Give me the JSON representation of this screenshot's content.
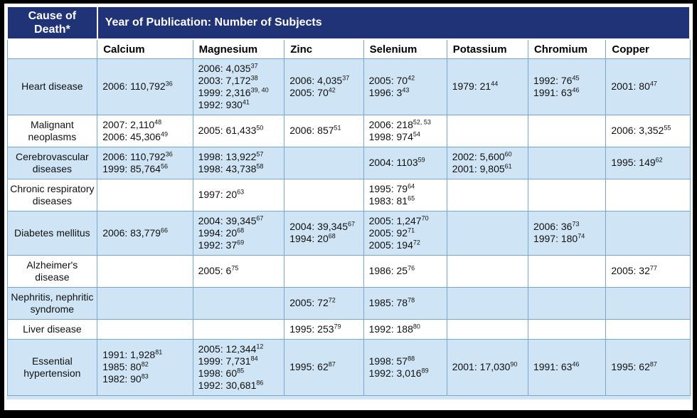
{
  "colors": {
    "header_navy": "#203376",
    "row_shaded": "#cfe4f4",
    "grid_blue": "#7aa6c9",
    "frame_black": "#000000"
  },
  "table": {
    "corner_header": "Cause of Death*",
    "span_header": "Year of Publication: Number of Subjects",
    "columns": [
      "Calcium",
      "Magnesium",
      "Zinc",
      "Selenium",
      "Potassium",
      "Chromium",
      "Copper"
    ],
    "rows": [
      {
        "label": "Heart disease",
        "cells": [
          [
            {
              "t": "2006: 110,792",
              "s": "36"
            }
          ],
          [
            {
              "t": "2006: 4,035",
              "s": "37"
            },
            {
              "t": "2003: 7,172",
              "s": "38"
            },
            {
              "t": "1999: 2,316",
              "s": "39, 40"
            },
            {
              "t": "1992: 930",
              "s": "41"
            }
          ],
          [
            {
              "t": "2006: 4,035",
              "s": "37"
            },
            {
              "t": "2005: 70",
              "s": "42"
            }
          ],
          [
            {
              "t": "2005: 70",
              "s": "42"
            },
            {
              "t": "1996: 3",
              "s": "43"
            }
          ],
          [
            {
              "t": "1979: 21",
              "s": "44"
            }
          ],
          [
            {
              "t": "1992: 76",
              "s": "45"
            },
            {
              "t": "1991: 63",
              "s": "46"
            }
          ],
          [
            {
              "t": "2001: 80",
              "s": "47"
            }
          ]
        ]
      },
      {
        "label": "Malignant neoplasms",
        "cells": [
          [
            {
              "t": "2007: 2,110",
              "s": "48"
            },
            {
              "t": "2006: 45,306",
              "s": "49"
            }
          ],
          [
            {
              "t": "2005: 61,433",
              "s": "50"
            }
          ],
          [
            {
              "t": "2006: 857",
              "s": "51"
            }
          ],
          [
            {
              "t": "2006: 218",
              "s": "52, 53"
            },
            {
              "t": "1998: 974",
              "s": "54"
            }
          ],
          [],
          [],
          [
            {
              "t": "2006: 3,352",
              "s": "55"
            }
          ]
        ]
      },
      {
        "label": "Cerebrovascular diseases",
        "cells": [
          [
            {
              "t": "2006: 110,792",
              "s": "36"
            },
            {
              "t": "1999: 85,764",
              "s": "56"
            }
          ],
          [
            {
              "t": "1998: 13,922",
              "s": "57"
            },
            {
              "t": "1998: 43,738",
              "s": "58"
            }
          ],
          [],
          [
            {
              "t": "2004: 1103",
              "s": "59"
            }
          ],
          [
            {
              "t": "2002: 5,600",
              "s": "60"
            },
            {
              "t": "2001: 9,805",
              "s": "61"
            }
          ],
          [],
          [
            {
              "t": "1995: 149",
              "s": "62"
            }
          ]
        ]
      },
      {
        "label": "Chronic respiratory diseases",
        "cells": [
          [],
          [
            {
              "t": "1997: 20",
              "s": "63"
            }
          ],
          [],
          [
            {
              "t": "1995: 79",
              "s": "64"
            },
            {
              "t": "1983: 81",
              "s": "65"
            }
          ],
          [],
          [],
          []
        ]
      },
      {
        "label": "Diabetes mellitus",
        "cells": [
          [
            {
              "t": "2006: 83,779",
              "s": "66"
            }
          ],
          [
            {
              "t": "2004: 39,345",
              "s": "67"
            },
            {
              "t": "1994: 20",
              "s": "68"
            },
            {
              "t": "1992: 37",
              "s": "69"
            }
          ],
          [
            {
              "t": "2004: 39,345",
              "s": "67"
            },
            {
              "t": "1994: 20",
              "s": "68"
            }
          ],
          [
            {
              "t": "2005: 1,247",
              "s": "70"
            },
            {
              "t": "2005: 92",
              "s": "71"
            },
            {
              "t": "2005: 194",
              "s": "72"
            }
          ],
          [],
          [
            {
              "t": "2006: 36",
              "s": "73"
            },
            {
              "t": "1997: 180",
              "s": "74"
            }
          ],
          []
        ]
      },
      {
        "label": "Alzheimer's disease",
        "cells": [
          [],
          [
            {
              "t": "2005: 6",
              "s": "75"
            }
          ],
          [],
          [
            {
              "t": "1986: 25",
              "s": "76"
            }
          ],
          [],
          [],
          [
            {
              "t": "2005: 32",
              "s": "77"
            }
          ]
        ]
      },
      {
        "label": "Nephritis, nephritic syndrome",
        "cells": [
          [],
          [],
          [
            {
              "t": "2005: 72",
              "s": "72"
            }
          ],
          [
            {
              "t": "1985: 78",
              "s": "78"
            }
          ],
          [],
          [],
          []
        ]
      },
      {
        "label": "Liver disease",
        "cells": [
          [],
          [],
          [
            {
              "t": "1995: 253",
              "s": "79"
            }
          ],
          [
            {
              "t": "1992: 188",
              "s": "80"
            }
          ],
          [],
          [],
          []
        ]
      },
      {
        "label": "Essential hypertension",
        "cells": [
          [
            {
              "t": "1991: 1,928",
              "s": "81"
            },
            {
              "t": "1985: 80",
              "s": "82"
            },
            {
              "t": "1982: 90",
              "s": "83"
            }
          ],
          [
            {
              "t": "2005: 12,344",
              "s": "12"
            },
            {
              "t": "1999: 7,731",
              "s": "84"
            },
            {
              "t": "1998: 60",
              "s": "85"
            },
            {
              "t": "1992: 30,681",
              "s": "86"
            }
          ],
          [
            {
              "t": "1995: 62",
              "s": "87"
            }
          ],
          [
            {
              "t": "1998: 57",
              "s": "88"
            },
            {
              "t": "1992: 3,016",
              "s": "89"
            }
          ],
          [
            {
              "t": "2001: 17,030",
              "s": "90"
            }
          ],
          [
            {
              "t": "1991: 63",
              "s": "46"
            }
          ],
          [
            {
              "t": "1995: 62",
              "s": "87"
            }
          ]
        ]
      }
    ]
  }
}
